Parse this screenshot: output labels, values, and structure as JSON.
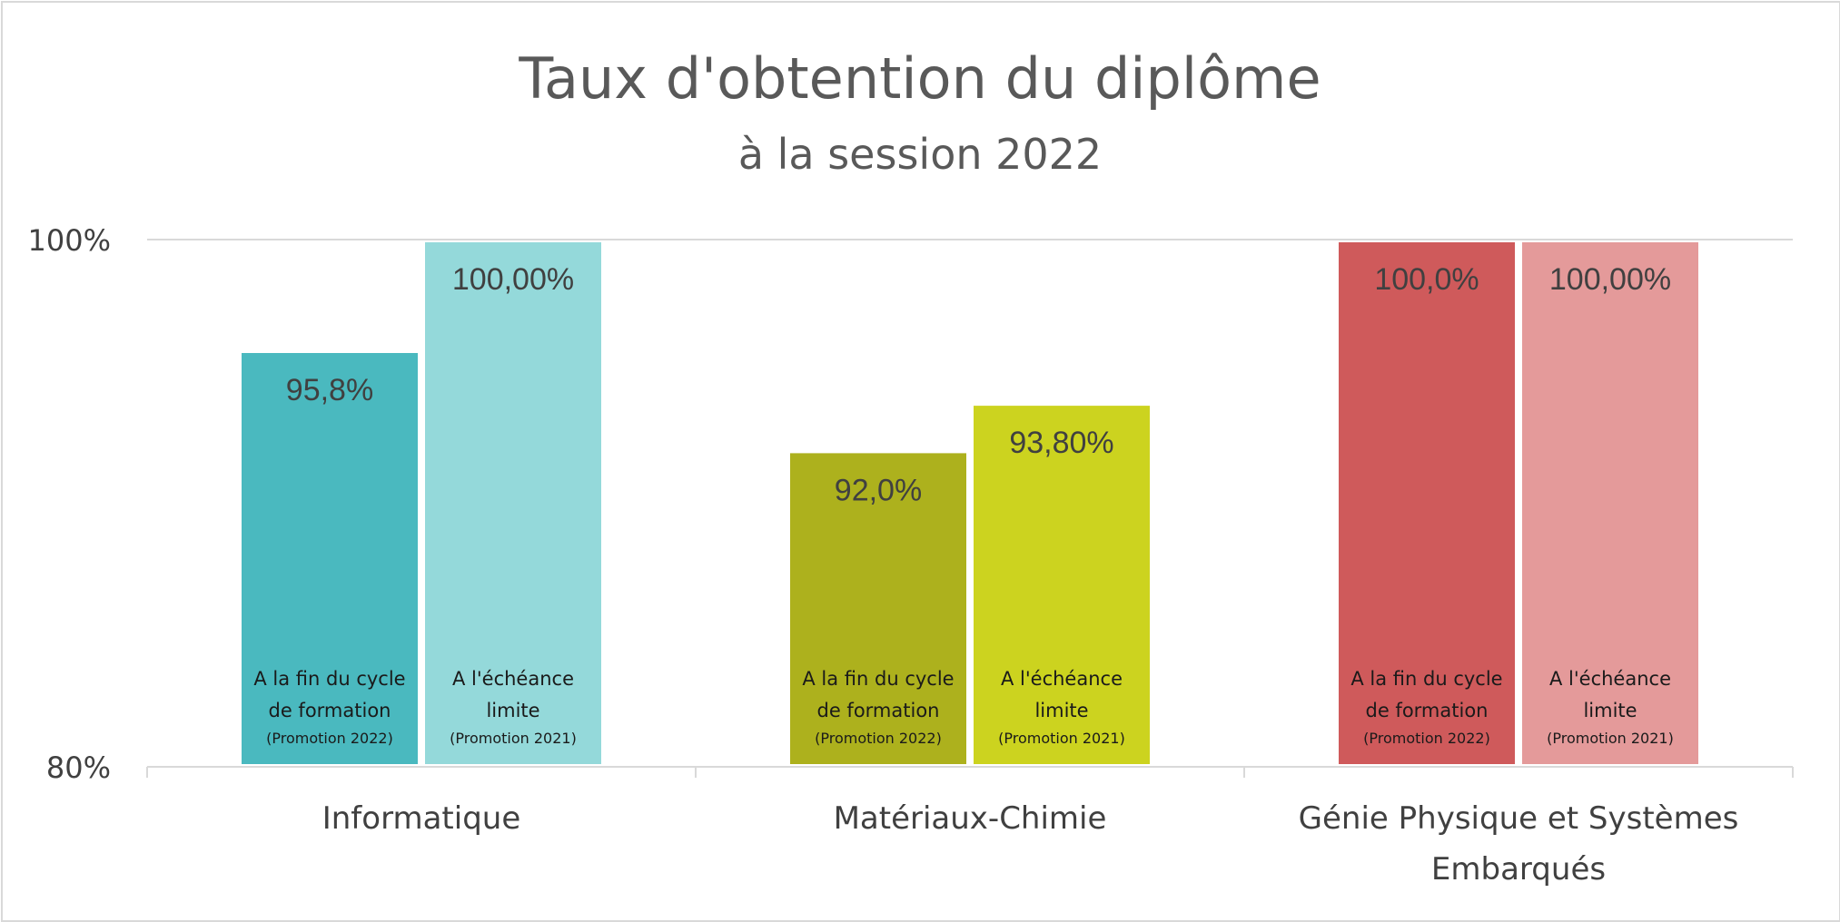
{
  "chart_data": {
    "type": "bar",
    "title": "Taux d'obtention du diplôme",
    "subtitle": "à la session 2022",
    "ylim": [
      80,
      100
    ],
    "y_ticks": [
      {
        "value": 100,
        "label": "100%"
      },
      {
        "value": 80,
        "label": "80%"
      }
    ],
    "grid": "major horizontal at 100%",
    "groups": [
      {
        "category": [
          "Informatique"
        ],
        "bars": [
          {
            "value": 95.8,
            "value_label": "95,8%",
            "color": "#4ab9bf",
            "lines": [
              "A la fin du cycle",
              "de formation"
            ],
            "note": "(Promotion 2022)"
          },
          {
            "value": 100.0,
            "value_label": "100,00%",
            "color": "#94d9da",
            "lines": [
              "A l'échéance",
              "limite"
            ],
            "note": "(Promotion 2021)"
          }
        ]
      },
      {
        "category": [
          "Matériaux-Chimie"
        ],
        "bars": [
          {
            "value": 92.0,
            "value_label": "92,0%",
            "color": "#adb11d",
            "lines": [
              "A la fin du cycle",
              "de formation"
            ],
            "note": "(Promotion 2022)"
          },
          {
            "value": 93.8,
            "value_label": "93,80%",
            "color": "#ccd31f",
            "lines": [
              "A l'échéance",
              "limite"
            ],
            "note": "(Promotion 2021)"
          }
        ]
      },
      {
        "category": [
          "Génie Physique et Systèmes",
          "Embarqués"
        ],
        "bars": [
          {
            "value": 100.0,
            "value_label": "100,0%",
            "color": "#cf5a5b",
            "lines": [
              "A la fin du cycle",
              "de formation"
            ],
            "note": "(Promotion 2022)"
          },
          {
            "value": 100.0,
            "value_label": "100,00%",
            "color": "#e49a9a",
            "lines": [
              "A l'échéance",
              "limite"
            ],
            "note": "(Promotion 2021)"
          }
        ]
      }
    ]
  }
}
